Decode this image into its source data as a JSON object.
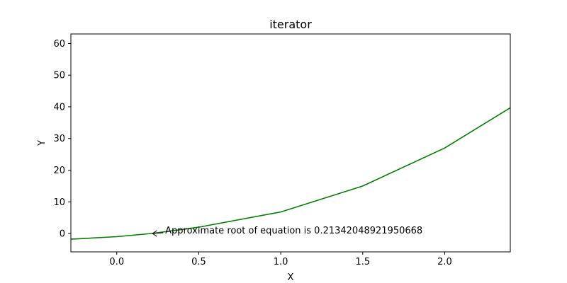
{
  "chart_data": {
    "type": "line",
    "title": "iterator",
    "xlabel": "X",
    "ylabel": "Y",
    "xlim": [
      -0.28,
      2.4
    ],
    "ylim": [
      -5.8,
      63
    ],
    "xticks": [
      0.0,
      0.5,
      1.0,
      1.5,
      2.0
    ],
    "xtick_labels": [
      "0.0",
      "0.5",
      "1.0",
      "1.5",
      "2.0"
    ],
    "yticks": [
      0,
      10,
      20,
      30,
      40,
      50,
      60
    ],
    "ytick_labels": [
      "0",
      "10",
      "20",
      "30",
      "40",
      "50",
      "60"
    ],
    "grid": false,
    "series": [
      {
        "color": "#008000",
        "x": [
          -0.28,
          0.0,
          0.2134,
          0.5,
          1.0,
          1.5,
          2.0,
          2.4
        ],
        "y": [
          -1.8,
          -1.0,
          0.0,
          2.0,
          6.8,
          15.0,
          27.0,
          39.7
        ]
      }
    ],
    "annotation": {
      "text": "Approximate root of equation is 0.21342048921950668",
      "x": 0.21342048921950668,
      "y": 0
    }
  }
}
